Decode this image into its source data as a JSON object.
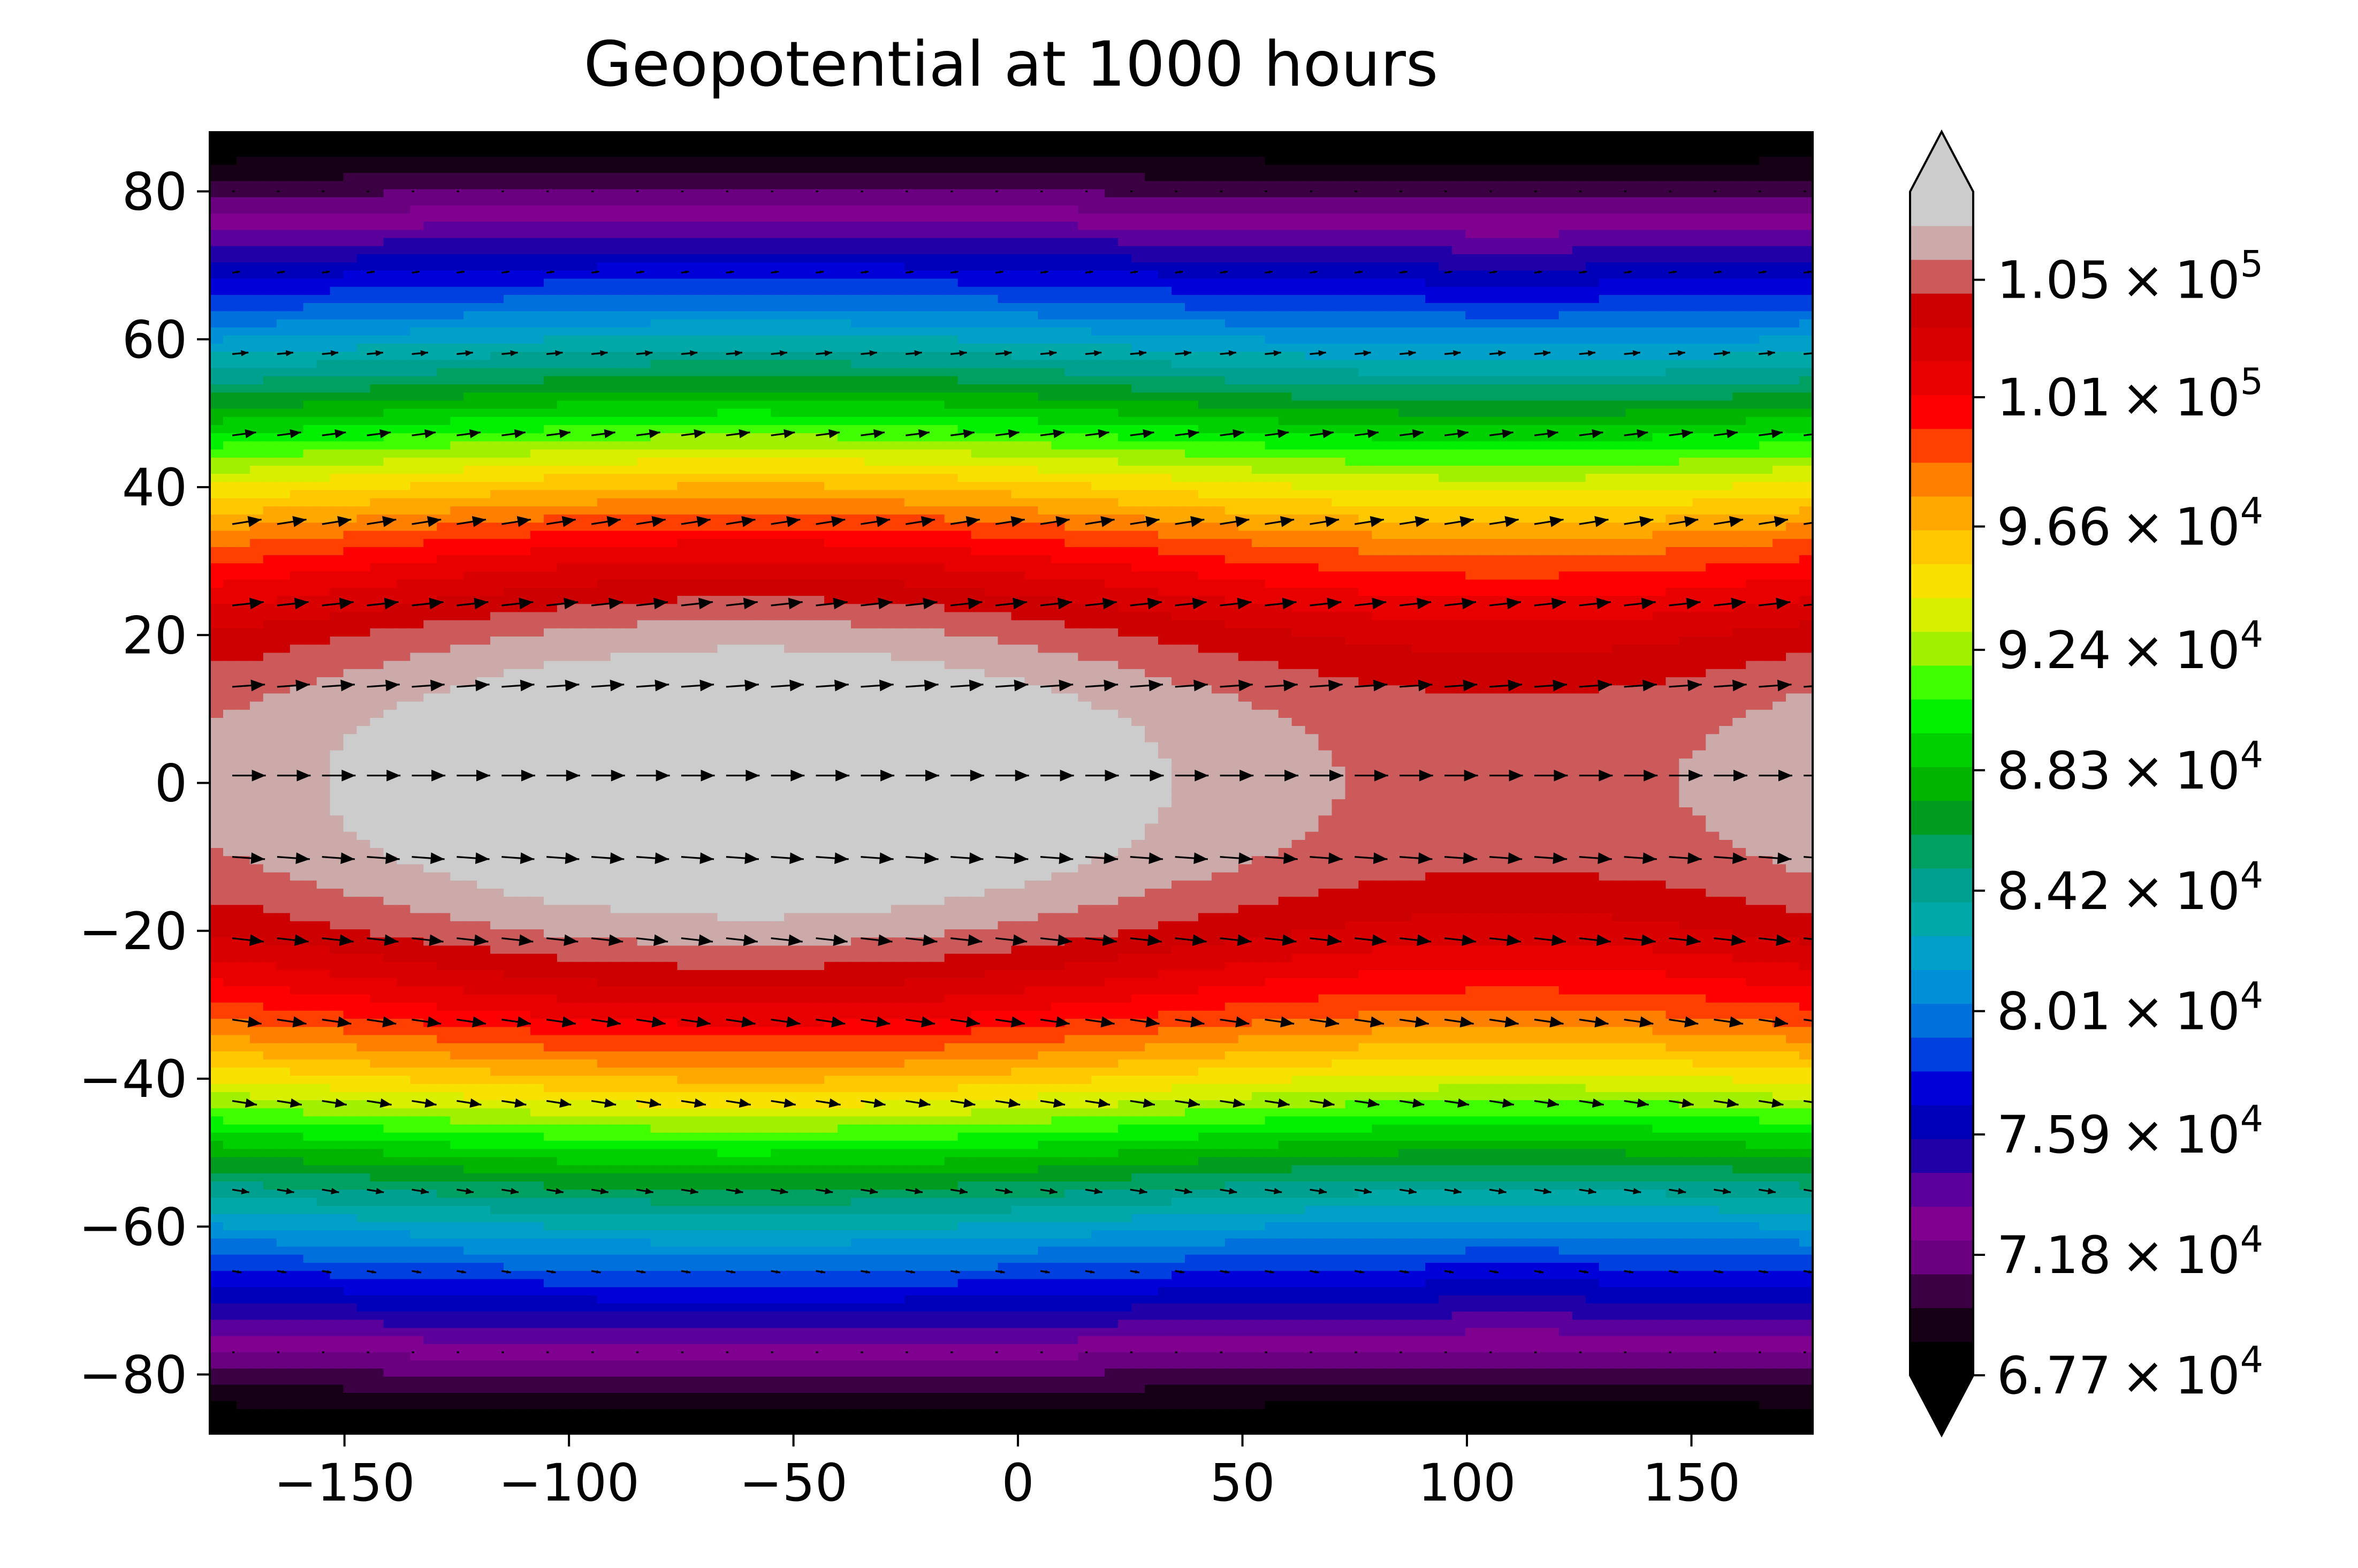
{
  "chart_data": {
    "type": "contour",
    "title": "Geopotential at 1000 hours",
    "xlabel": "",
    "ylabel": "",
    "xlim": [
      -180,
      177
    ],
    "ylim": [
      -88,
      88
    ],
    "x_ticks": [
      -150,
      -100,
      -50,
      0,
      50,
      100,
      150
    ],
    "x_tick_labels": [
      "−150",
      "−100",
      "−50",
      "0",
      "50",
      "100",
      "150"
    ],
    "y_ticks": [
      80,
      60,
      40,
      20,
      0,
      -20,
      -40,
      -60,
      -80
    ],
    "y_tick_labels": [
      "80",
      "60",
      "40",
      "20",
      "0",
      "−20",
      "−40",
      "−60",
      "−80"
    ],
    "grid": false,
    "colorbar": {
      "min": 67700,
      "max": 108000,
      "extend": "both",
      "tick_values": [
        67700,
        71800,
        75900,
        80100,
        84200,
        88300,
        92400,
        96600,
        101000,
        105000
      ],
      "tick_mantissas": [
        "6.77",
        "7.18",
        "7.59",
        "8.01",
        "8.42",
        "8.83",
        "9.24",
        "9.66",
        "1.01",
        "1.05"
      ],
      "tick_exponents": [
        "4",
        "4",
        "4",
        "4",
        "4",
        "4",
        "4",
        "4",
        "5",
        "5"
      ],
      "colors": [
        "#000000",
        "#160016",
        "#3a0042",
        "#6a0080",
        "#800090",
        "#5c009c",
        "#2200a8",
        "#0000b8",
        "#0000d8",
        "#0040e0",
        "#0070dd",
        "#0090d8",
        "#00a0c8",
        "#00a8a8",
        "#00a090",
        "#00a060",
        "#009c20",
        "#00b400",
        "#00d000",
        "#00f000",
        "#40ff00",
        "#a0f000",
        "#d8f000",
        "#f8e000",
        "#ffc800",
        "#ffa800",
        "#ff8000",
        "#ff4000",
        "#ff0000",
        "#e80000",
        "#d80000",
        "#cc0000",
        "#cc5a5a",
        "#ccaaaa",
        "#cccccc"
      ],
      "under_color": "#000000",
      "over_color": "#cccccc"
    },
    "field_lat_profile": {
      "lat": [
        -88,
        -84,
        -80,
        -76,
        -72,
        -68,
        -64,
        -60,
        -56,
        -52,
        -48,
        -44,
        -40,
        -36,
        -32,
        -28,
        -24,
        -20,
        -16,
        -12,
        -8,
        -4,
        0,
        4,
        8,
        12,
        16,
        20,
        24,
        28,
        32,
        36,
        40,
        44,
        48,
        52,
        56,
        60,
        64,
        68,
        72,
        76,
        80,
        84,
        88
      ],
      "value": [
        67800,
        69000,
        71000,
        73000,
        75200,
        77400,
        79600,
        82000,
        84400,
        87000,
        89800,
        92600,
        95200,
        97600,
        99800,
        101600,
        103200,
        104600,
        105600,
        106400,
        106900,
        107100,
        107200,
        107100,
        106900,
        106400,
        105600,
        104600,
        103200,
        101600,
        99800,
        97600,
        95200,
        92600,
        89800,
        87000,
        84400,
        82000,
        79600,
        77400,
        75200,
        73000,
        71000,
        69000,
        67800
      ]
    },
    "field_zonal_wave": {
      "amplitude": 1900,
      "peak_lon": -60,
      "trough_lon": 110
    },
    "wind_vectors": {
      "lon_start": -175,
      "lon_step": 10,
      "lat": [
        80,
        69,
        58,
        47,
        35,
        24,
        13,
        1,
        -10,
        -21,
        -32,
        -43,
        -55,
        -66,
        -77
      ],
      "u": [
        0.6,
        2.0,
        4.2,
        6.2,
        7.6,
        8.2,
        8.5,
        8.7,
        8.5,
        8.2,
        7.6,
        6.4,
        4.4,
        2.4,
        0.6
      ],
      "v": [
        0.0,
        0.3,
        0.4,
        0.8,
        1.2,
        0.9,
        0.6,
        0.0,
        -0.6,
        -0.9,
        -1.1,
        -1.0,
        -0.7,
        -0.4,
        0.0
      ]
    }
  }
}
